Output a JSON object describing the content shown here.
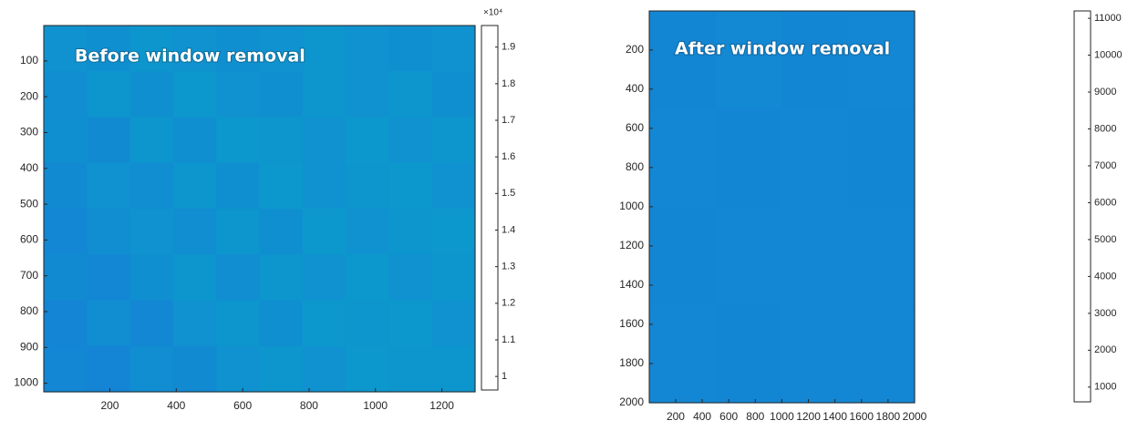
{
  "chart_data": [
    {
      "type": "heatmap",
      "title": "Before window removal",
      "colormap": "parula",
      "y_reversed": true,
      "xlim": [
        1,
        1300
      ],
      "xticks": [
        200,
        400,
        600,
        800,
        1000,
        1200
      ],
      "ylim": [
        1,
        1024
      ],
      "yticks": [
        100,
        200,
        300,
        400,
        500,
        600,
        700,
        800,
        900,
        1000
      ],
      "clim": [
        9630,
        19590
      ],
      "cticks": [
        {
          "value": 10000,
          "label": "1"
        },
        {
          "value": 11000,
          "label": "1.1"
        },
        {
          "value": 12000,
          "label": "1.2"
        },
        {
          "value": 13000,
          "label": "1.3"
        },
        {
          "value": 14000,
          "label": "1.4"
        },
        {
          "value": 15000,
          "label": "1.5"
        },
        {
          "value": 16000,
          "label": "1.6"
        },
        {
          "value": 17000,
          "label": "1.7"
        },
        {
          "value": 18000,
          "label": "1.8"
        },
        {
          "value": 19000,
          "label": "1.9"
        }
      ],
      "colorbar_exponent_label": "×10⁴",
      "values": [
        [
          12600,
          12500,
          12700,
          12600,
          12500,
          12600,
          12700,
          12600,
          12500,
          12600
        ],
        [
          12400,
          12700,
          12500,
          12800,
          12600,
          12500,
          12700,
          12600,
          12700,
          12500
        ],
        [
          12500,
          12300,
          12700,
          12500,
          12800,
          12700,
          12600,
          12800,
          12600,
          12700
        ],
        [
          12300,
          12600,
          12400,
          12700,
          12500,
          12800,
          12600,
          12700,
          12800,
          12600
        ],
        [
          12200,
          12400,
          12600,
          12400,
          12700,
          12500,
          12800,
          12600,
          12700,
          12800
        ],
        [
          12300,
          12200,
          12500,
          12700,
          12400,
          12700,
          12600,
          12800,
          12600,
          12700
        ],
        [
          12100,
          12400,
          12200,
          12600,
          12700,
          12500,
          12800,
          12700,
          12800,
          12600
        ],
        [
          12200,
          12100,
          12400,
          12300,
          12600,
          12700,
          12600,
          12800,
          12700,
          12700
        ]
      ]
    },
    {
      "type": "heatmap",
      "title": "After window removal",
      "colormap": "parula",
      "y_reversed": true,
      "xlim": [
        1,
        2000
      ],
      "xticks": [
        200,
        400,
        600,
        800,
        1000,
        1200,
        1400,
        1600,
        1800,
        2000
      ],
      "ylim": [
        1,
        2000
      ],
      "yticks": [
        200,
        400,
        600,
        800,
        1000,
        1200,
        1400,
        1600,
        1800,
        2000
      ],
      "clim": [
        600,
        11200
      ],
      "cticks": [
        1000,
        2000,
        3000,
        4000,
        5000,
        6000,
        7000,
        8000,
        9000,
        10000,
        11000
      ],
      "values": [
        [
          3300,
          3350,
          3300,
          3320
        ],
        [
          3320,
          3300,
          3340,
          3300
        ],
        [
          3300,
          3330,
          3310,
          3340
        ],
        [
          3340,
          3300,
          3330,
          3310
        ]
      ]
    }
  ]
}
